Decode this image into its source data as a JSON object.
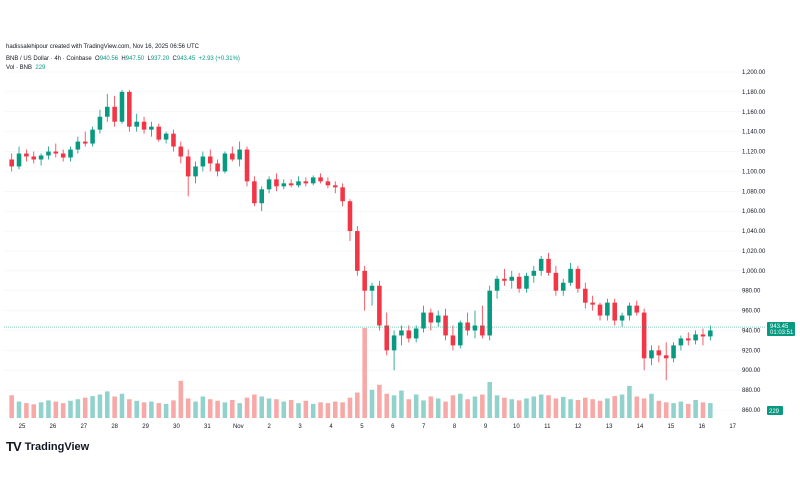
{
  "header": {
    "created_by": "hadissalehipour created with TradingView.com, Nov 16, 2025 06:56 UTC",
    "symbol_desc": "BNB / US Dollar · 4h · Coinbase",
    "ohlc": {
      "o_label": "O",
      "o_value": "940.56",
      "h_label": "H",
      "h_value": "947.50",
      "l_label": "L",
      "l_value": "937.20",
      "c_label": "C",
      "c_value": "943.45",
      "change": "+2.93 (+0.31%)"
    },
    "vol_label": "Vol · BNB",
    "vol_value": "229"
  },
  "logo": {
    "text": "TradingView",
    "mark": "TV"
  },
  "colors": {
    "up": "#089981",
    "down": "#f23645",
    "up_vol": "#92d2cc",
    "down_vol": "#f7a9a7",
    "grid": "#f0f3fa",
    "price_line": "#089981"
  },
  "chart_data": {
    "type": "candlestick",
    "symbol": "BNB / US Dollar",
    "interval": "4h",
    "exchange": "Coinbase",
    "price_axis": {
      "min": 860,
      "max": 1210,
      "ticks": [
        "1,200.00",
        "1,180.00",
        "1,160.00",
        "1,140.00",
        "1,120.00",
        "1,100.00",
        "1,080.00",
        "1,060.00",
        "1,040.00",
        "1,020.00",
        "1,000.00",
        "980.00",
        "960.00",
        "940.00",
        "920.00",
        "900.00",
        "880.00",
        "860.00"
      ]
    },
    "time_axis_labels": [
      "25",
      "26",
      "27",
      "28",
      "29",
      "30",
      "31",
      "Nov",
      "2",
      "3",
      "4",
      "5",
      "6",
      "7",
      "8",
      "9",
      "10",
      "11",
      "12",
      "13",
      "14",
      "15",
      "16",
      "17"
    ],
    "last_price_label": "943.45",
    "countdown_label": "01:03:51",
    "volume_label": "229",
    "candles": [
      [
        1112,
        1118,
        1100,
        1105
      ],
      [
        1105,
        1125,
        1102,
        1118
      ],
      [
        1118,
        1122,
        1110,
        1115
      ],
      [
        1115,
        1120,
        1108,
        1112
      ],
      [
        1112,
        1118,
        1106,
        1116
      ],
      [
        1116,
        1125,
        1112,
        1120
      ],
      [
        1120,
        1128,
        1114,
        1118
      ],
      [
        1118,
        1122,
        1110,
        1114
      ],
      [
        1114,
        1125,
        1110,
        1122
      ],
      [
        1122,
        1135,
        1118,
        1130
      ],
      [
        1130,
        1140,
        1125,
        1128
      ],
      [
        1128,
        1145,
        1125,
        1142
      ],
      [
        1142,
        1162,
        1138,
        1155
      ],
      [
        1155,
        1178,
        1150,
        1165
      ],
      [
        1165,
        1176,
        1145,
        1150
      ],
      [
        1150,
        1182,
        1148,
        1180
      ],
      [
        1180,
        1182,
        1140,
        1145
      ],
      [
        1145,
        1158,
        1140,
        1150
      ],
      [
        1150,
        1155,
        1138,
        1142
      ],
      [
        1142,
        1150,
        1135,
        1145
      ],
      [
        1145,
        1148,
        1130,
        1132
      ],
      [
        1132,
        1140,
        1128,
        1138
      ],
      [
        1138,
        1142,
        1120,
        1125
      ],
      [
        1125,
        1130,
        1108,
        1115
      ],
      [
        1115,
        1122,
        1075,
        1095
      ],
      [
        1095,
        1110,
        1088,
        1105
      ],
      [
        1105,
        1120,
        1100,
        1115
      ],
      [
        1115,
        1122,
        1100,
        1108
      ],
      [
        1108,
        1112,
        1095,
        1100
      ],
      [
        1100,
        1120,
        1098,
        1118
      ],
      [
        1118,
        1125,
        1110,
        1112
      ],
      [
        1112,
        1130,
        1105,
        1122
      ],
      [
        1122,
        1125,
        1085,
        1090
      ],
      [
        1090,
        1095,
        1065,
        1068
      ],
      [
        1068,
        1085,
        1060,
        1082
      ],
      [
        1082,
        1095,
        1078,
        1092
      ],
      [
        1092,
        1098,
        1080,
        1085
      ],
      [
        1085,
        1092,
        1082,
        1088
      ],
      [
        1088,
        1092,
        1084,
        1086
      ],
      [
        1086,
        1095,
        1084,
        1090
      ],
      [
        1090,
        1094,
        1085,
        1088
      ],
      [
        1088,
        1096,
        1086,
        1094
      ],
      [
        1094,
        1098,
        1088,
        1090
      ],
      [
        1090,
        1094,
        1083,
        1086
      ],
      [
        1086,
        1090,
        1078,
        1084
      ],
      [
        1084,
        1088,
        1065,
        1070
      ],
      [
        1070,
        1072,
        1030,
        1040
      ],
      [
        1040,
        1045,
        995,
        1000
      ],
      [
        1000,
        1005,
        960,
        980
      ],
      [
        980,
        988,
        965,
        985
      ],
      [
        985,
        990,
        940,
        945
      ],
      [
        945,
        958,
        915,
        920
      ],
      [
        920,
        940,
        900,
        935
      ],
      [
        935,
        945,
        925,
        940
      ],
      [
        940,
        945,
        928,
        932
      ],
      [
        932,
        945,
        928,
        942
      ],
      [
        942,
        965,
        938,
        958
      ],
      [
        958,
        962,
        940,
        948
      ],
      [
        948,
        960,
        944,
        955
      ],
      [
        955,
        962,
        930,
        935
      ],
      [
        935,
        945,
        920,
        925
      ],
      [
        925,
        950,
        922,
        948
      ],
      [
        948,
        958,
        935,
        940
      ],
      [
        940,
        960,
        932,
        945
      ],
      [
        945,
        965,
        932,
        935
      ],
      [
        935,
        985,
        930,
        980
      ],
      [
        980,
        995,
        972,
        992
      ],
      [
        992,
        1002,
        985,
        990
      ],
      [
        990,
        1000,
        982,
        994
      ],
      [
        994,
        998,
        978,
        982
      ],
      [
        982,
        998,
        978,
        995
      ],
      [
        995,
        1005,
        988,
        1000
      ],
      [
        1000,
        1015,
        995,
        1012
      ],
      [
        1012,
        1018,
        995,
        998
      ],
      [
        998,
        1005,
        975,
        980
      ],
      [
        980,
        992,
        975,
        988
      ],
      [
        988,
        1008,
        985,
        1002
      ],
      [
        1002,
        1005,
        978,
        982
      ],
      [
        982,
        988,
        962,
        968
      ],
      [
        968,
        975,
        960,
        966
      ],
      [
        966,
        968,
        950,
        955
      ],
      [
        955,
        972,
        950,
        968
      ],
      [
        968,
        972,
        945,
        950
      ],
      [
        950,
        958,
        944,
        955
      ],
      [
        955,
        968,
        950,
        965
      ],
      [
        965,
        970,
        955,
        958
      ],
      [
        958,
        962,
        900,
        912
      ],
      [
        912,
        925,
        905,
        920
      ],
      [
        920,
        925,
        908,
        915
      ],
      [
        915,
        928,
        890,
        912
      ],
      [
        912,
        928,
        908,
        925
      ],
      [
        925,
        935,
        920,
        932
      ],
      [
        932,
        938,
        925,
        930
      ],
      [
        930,
        940,
        926,
        936
      ],
      [
        936,
        942,
        925,
        934
      ],
      [
        934,
        945,
        930,
        940
      ]
    ],
    "volume": [
      58,
      42,
      38,
      35,
      40,
      45,
      42,
      38,
      44,
      48,
      52,
      56,
      60,
      68,
      55,
      62,
      48,
      44,
      40,
      42,
      38,
      36,
      45,
      95,
      50,
      42,
      55,
      48,
      44,
      40,
      46,
      38,
      52,
      60,
      55,
      50,
      48,
      42,
      46,
      38,
      44,
      36,
      40,
      38,
      42,
      40,
      52,
      65,
      230,
      72,
      85,
      62,
      58,
      70,
      48,
      60,
      45,
      55,
      50,
      42,
      58,
      62,
      48,
      55,
      60,
      92,
      58,
      52,
      48,
      45,
      50,
      55,
      60,
      58,
      50,
      54,
      48,
      46,
      52,
      48,
      44,
      50,
      56,
      60,
      82,
      55,
      50,
      62,
      44,
      40,
      38,
      42,
      36,
      46,
      40,
      38
    ]
  }
}
